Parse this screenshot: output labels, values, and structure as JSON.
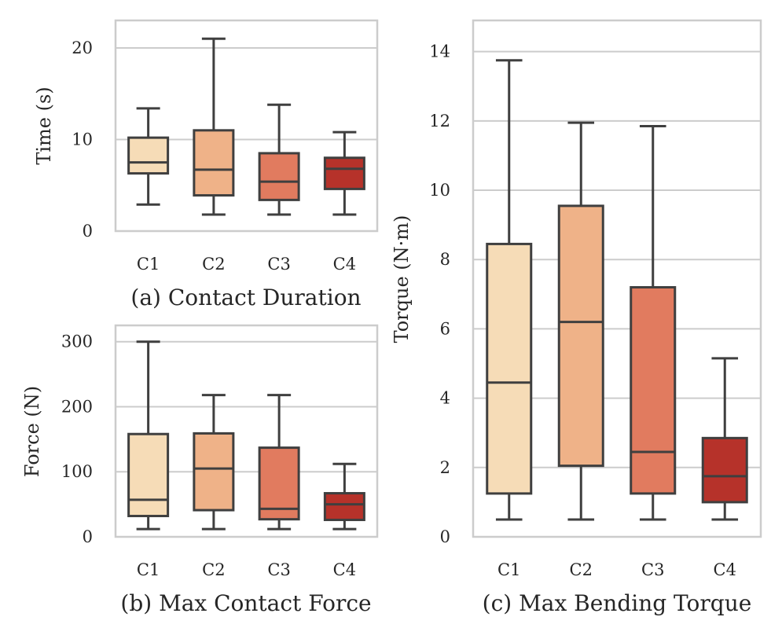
{
  "colors": {
    "C1": "#f6dcb7",
    "C2": "#efb288",
    "C3": "#e17b5f",
    "C4": "#b6322a"
  },
  "chart_data": [
    {
      "id": "a",
      "type": "box",
      "title": "(a) Contact Duration",
      "ylabel": "Time (s)",
      "xlabel": "",
      "ylim": [
        0,
        23
      ],
      "yticks": [
        0,
        10,
        20
      ],
      "grid": true,
      "categories": [
        "C1",
        "C2",
        "C3",
        "C4"
      ],
      "boxes": [
        {
          "name": "C1",
          "whislo": 2.9,
          "q1": 6.3,
          "med": 7.5,
          "q3": 10.2,
          "whishi": 13.4
        },
        {
          "name": "C2",
          "whislo": 1.8,
          "q1": 3.9,
          "med": 6.7,
          "q3": 11.0,
          "whishi": 21.0
        },
        {
          "name": "C3",
          "whislo": 1.8,
          "q1": 3.4,
          "med": 5.4,
          "q3": 8.5,
          "whishi": 13.8
        },
        {
          "name": "C4",
          "whislo": 1.8,
          "q1": 4.6,
          "med": 6.8,
          "q3": 8.0,
          "whishi": 10.8
        }
      ]
    },
    {
      "id": "b",
      "type": "box",
      "title": "(b) Max Contact Force",
      "ylabel": "Force (N)",
      "xlabel": "",
      "ylim": [
        0,
        325
      ],
      "yticks": [
        0,
        100,
        200,
        300
      ],
      "grid": true,
      "categories": [
        "C1",
        "C2",
        "C3",
        "C4"
      ],
      "boxes": [
        {
          "name": "C1",
          "whislo": 12,
          "q1": 32,
          "med": 57,
          "q3": 158,
          "whishi": 300
        },
        {
          "name": "C2",
          "whislo": 12,
          "q1": 41,
          "med": 105,
          "q3": 159,
          "whishi": 218
        },
        {
          "name": "C3",
          "whislo": 12,
          "q1": 27,
          "med": 43,
          "q3": 137,
          "whishi": 218
        },
        {
          "name": "C4",
          "whislo": 12,
          "q1": 26,
          "med": 50,
          "q3": 67,
          "whishi": 112
        }
      ]
    },
    {
      "id": "c",
      "type": "box",
      "title": "(c) Max Bending Torque",
      "ylabel": "Torque (N·m)",
      "xlabel": "",
      "ylim": [
        0,
        14.9
      ],
      "yticks": [
        0,
        2,
        4,
        6,
        8,
        10,
        12,
        14
      ],
      "grid": true,
      "categories": [
        "C1",
        "C2",
        "C3",
        "C4"
      ],
      "boxes": [
        {
          "name": "C1",
          "whislo": 0.5,
          "q1": 1.25,
          "med": 4.45,
          "q3": 8.45,
          "whishi": 13.75
        },
        {
          "name": "C2",
          "whislo": 0.5,
          "q1": 2.05,
          "med": 6.2,
          "q3": 9.55,
          "whishi": 11.95
        },
        {
          "name": "C3",
          "whislo": 0.5,
          "q1": 1.25,
          "med": 2.45,
          "q3": 7.2,
          "whishi": 11.85
        },
        {
          "name": "C4",
          "whislo": 0.5,
          "q1": 1.0,
          "med": 1.75,
          "q3": 2.85,
          "whishi": 5.15
        }
      ]
    }
  ]
}
